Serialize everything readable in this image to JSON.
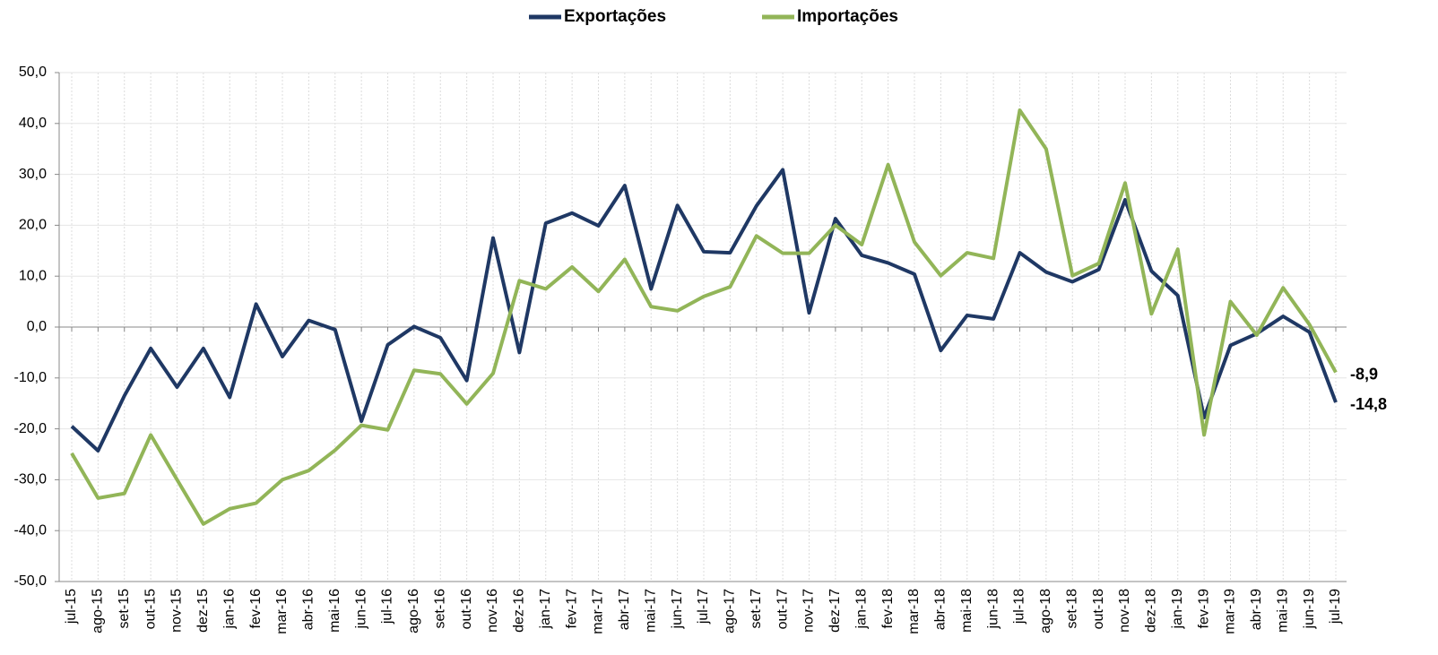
{
  "chart_data": {
    "type": "line",
    "categories": [
      "jul-15",
      "ago-15",
      "set-15",
      "out-15",
      "nov-15",
      "dez-15",
      "jan-16",
      "fev-16",
      "mar-16",
      "abr-16",
      "mai-16",
      "jun-16",
      "jul-16",
      "ago-16",
      "set-16",
      "out-16",
      "nov-16",
      "dez-16",
      "jan-17",
      "fev-17",
      "mar-17",
      "abr-17",
      "mai-17",
      "jun-17",
      "jul-17",
      "ago-17",
      "set-17",
      "out-17",
      "nov-17",
      "dez-17",
      "jan-18",
      "fev-18",
      "mar-18",
      "abr-18",
      "mai-18",
      "jun-18",
      "jul-18",
      "ago-18",
      "set-18",
      "out-18",
      "nov-18",
      "dez-18",
      "jan-19",
      "fev-19",
      "mar-19",
      "abr-19",
      "mai-19",
      "jun-19",
      "jul-19"
    ],
    "series": [
      {
        "name": "Exportações",
        "color": "#1f3864",
        "values": [
          -19.5,
          -24.3,
          -13.5,
          -4.2,
          -11.8,
          -4.2,
          -13.8,
          4.5,
          -5.8,
          1.3,
          -0.5,
          -18.5,
          -3.5,
          0.1,
          -2.1,
          -10.5,
          17.5,
          -5.0,
          20.4,
          22.4,
          19.9,
          27.8,
          7.5,
          23.9,
          14.8,
          14.6,
          23.8,
          30.9,
          2.8,
          21.3,
          14.1,
          12.6,
          10.4,
          -4.6,
          2.3,
          1.6,
          14.6,
          10.8,
          8.9,
          11.3,
          25.0,
          11.0,
          6.2,
          -17.8,
          -3.6,
          -1.3,
          2.1,
          -1.0,
          -14.8
        ],
        "value_labels": [
          null,
          null,
          null,
          null,
          null,
          null,
          null,
          null,
          null,
          null,
          null,
          null,
          null,
          null,
          null,
          null,
          null,
          null,
          null,
          null,
          null,
          null,
          null,
          null,
          null,
          null,
          null,
          null,
          null,
          null,
          null,
          null,
          null,
          null,
          null,
          null,
          null,
          null,
          null,
          null,
          null,
          null,
          null,
          null,
          null,
          null,
          null,
          null,
          "-14,8"
        ]
      },
      {
        "name": "Importações",
        "color": "#92b558",
        "values": [
          -24.8,
          -33.6,
          -32.7,
          -21.2,
          -30.0,
          -38.7,
          -35.7,
          -34.6,
          -30.0,
          -28.2,
          -24.2,
          -19.3,
          -20.2,
          -8.5,
          -9.2,
          -15.1,
          -9.1,
          9.1,
          7.5,
          11.8,
          7.0,
          13.3,
          4.0,
          3.2,
          6.0,
          7.9,
          17.9,
          14.5,
          14.5,
          20.0,
          16.2,
          31.9,
          16.7,
          10.1,
          14.6,
          13.5,
          42.6,
          35.0,
          10.1,
          12.5,
          28.3,
          2.6,
          15.3,
          -21.2,
          5.0,
          -1.6,
          7.7,
          0.5,
          -8.9
        ],
        "value_labels": [
          null,
          null,
          null,
          null,
          null,
          null,
          null,
          null,
          null,
          null,
          null,
          null,
          null,
          null,
          null,
          null,
          null,
          null,
          null,
          null,
          null,
          null,
          null,
          null,
          null,
          null,
          null,
          null,
          null,
          null,
          null,
          null,
          null,
          null,
          null,
          null,
          null,
          null,
          null,
          null,
          null,
          null,
          null,
          null,
          null,
          null,
          null,
          null,
          "-8,9"
        ]
      }
    ],
    "ylim": [
      -50,
      50
    ],
    "yticks": [
      {
        "value": -50,
        "label": "-50,0"
      },
      {
        "value": -40,
        "label": "-40,0"
      },
      {
        "value": -30,
        "label": "-30,0"
      },
      {
        "value": -20,
        "label": "-20,0"
      },
      {
        "value": -10,
        "label": "-10,0"
      },
      {
        "value": 0,
        "label": "0,0"
      },
      {
        "value": 10,
        "label": "10,0"
      },
      {
        "value": 20,
        "label": "20,0"
      },
      {
        "value": 30,
        "label": "30,0"
      },
      {
        "value": 40,
        "label": "40,0"
      },
      {
        "value": 50,
        "label": "50,0"
      }
    ],
    "grid": true,
    "legend": "top"
  }
}
